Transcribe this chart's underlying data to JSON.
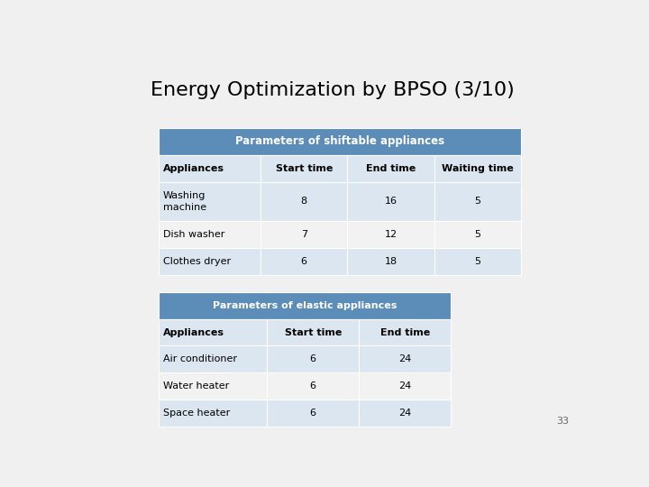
{
  "title": "Energy Optimization by BPSO (3/10)",
  "title_fontsize": 16,
  "background_color": "#f0f0f0",
  "table1_header": "Parameters of shiftable appliances",
  "table1_col_headers": [
    "Appliances",
    "Start time",
    "End time",
    "Waiting time"
  ],
  "table1_rows": [
    [
      "Washing\nmachine",
      "8",
      "16",
      "5"
    ],
    [
      "Dish washer",
      "7",
      "12",
      "5"
    ],
    [
      "Clothes dryer",
      "6",
      "18",
      "5"
    ]
  ],
  "table2_header": "Parameters of elastic appliances",
  "table2_col_headers": [
    "Appliances",
    "Start time",
    "End time"
  ],
  "table2_rows": [
    [
      "Air conditioner",
      "6",
      "24"
    ],
    [
      "Water heater",
      "6",
      "24"
    ],
    [
      "Space heater",
      "6",
      "24"
    ]
  ],
  "header_bg": "#5b8db8",
  "header_text_color": "#ffffff",
  "col_header_bg": "#dce6f1",
  "col_header_text_color": "#000000",
  "row_odd_bg": "#f2f2f2",
  "row_even_bg": "#dce6f1",
  "row_text_color": "#000000",
  "page_number": "33",
  "slide_bg": "#f0f0f0"
}
